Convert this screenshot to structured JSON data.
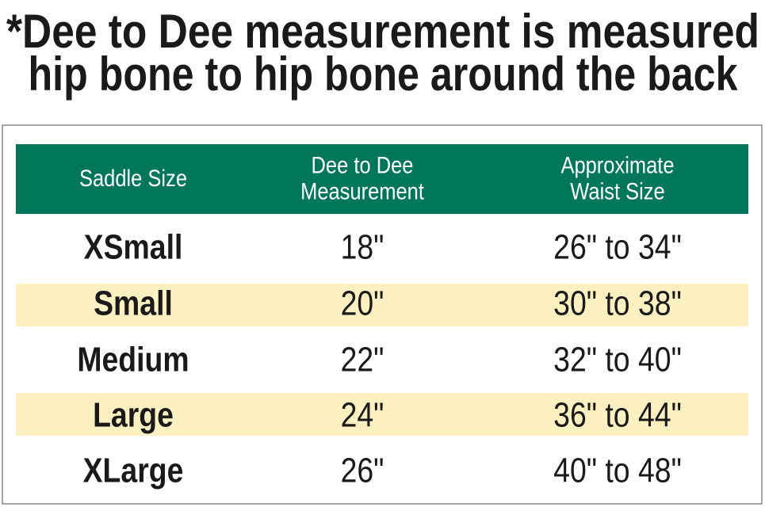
{
  "heading": {
    "lines": [
      "*Dee to Dee measurement is measured",
      "hip bone to hip bone around the back"
    ]
  },
  "table": {
    "header": [
      [
        "Saddle Size"
      ],
      [
        "Dee to Dee",
        "Measurement"
      ],
      [
        "Approximate",
        "Waist Size"
      ]
    ],
    "rows": [
      [
        "XSmall",
        "18\"",
        "26\" to 34\""
      ],
      [
        "Small",
        "20\"",
        "30\" to 38\""
      ],
      [
        "Medium",
        "22\"",
        "32\" to 40\""
      ],
      [
        "Large",
        "24\"",
        "36\" to 44\""
      ],
      [
        "XLarge",
        "26\"",
        "40\" to 48\""
      ]
    ]
  }
}
